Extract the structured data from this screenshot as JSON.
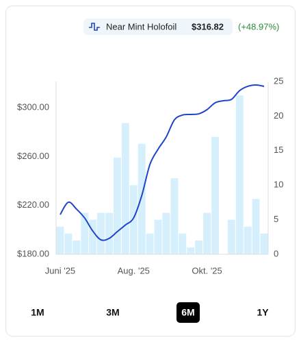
{
  "legend": {
    "price": "$316.82",
    "change": "(+48.97%)"
  },
  "ranges": [
    "1M",
    "3M",
    "6M",
    "1Y"
  ],
  "selected_range": 2,
  "chart_data": {
    "type": "combo",
    "categories": [
      "Juni '25",
      null,
      null,
      null,
      null,
      null,
      null,
      null,
      null,
      "Aug. '25",
      null,
      null,
      null,
      null,
      null,
      null,
      null,
      null,
      "Okt. '25",
      null,
      null,
      null,
      null,
      null,
      null,
      null
    ],
    "series": [
      {
        "name": "Near Mint Holofoil",
        "type": "line",
        "color": "#1e44c8",
        "axis": "y",
        "values": [
          212.5,
          222.6,
          217,
          209.7,
          199,
          191.8,
          193,
          198.5,
          204,
          209.7,
          228,
          253.5,
          266,
          276,
          290,
          294,
          294.5,
          295,
          298.4,
          304,
          305.7,
          306.8,
          314,
          317.5,
          318.6,
          317.5
        ]
      },
      {
        "type": "bar",
        "color": "#d6effd",
        "axis": "y2",
        "values": [
          4,
          3,
          2,
          6,
          5,
          6,
          6,
          14,
          19,
          10,
          16,
          3,
          5,
          6,
          11,
          3,
          1,
          2,
          6,
          17,
          0,
          5,
          23,
          4,
          8,
          3
        ]
      }
    ],
    "ylim": [
      180,
      321.4
    ],
    "yticks": [
      {
        "value": 180,
        "label": "$180.00"
      },
      {
        "value": 220,
        "label": "$220.00"
      },
      {
        "value": 260,
        "label": "$260.00"
      },
      {
        "value": 300,
        "label": "$300.00"
      }
    ],
    "y2lim": [
      0,
      25
    ],
    "y2ticks": [
      0,
      5,
      10,
      15,
      20,
      25
    ],
    "grid": false
  }
}
